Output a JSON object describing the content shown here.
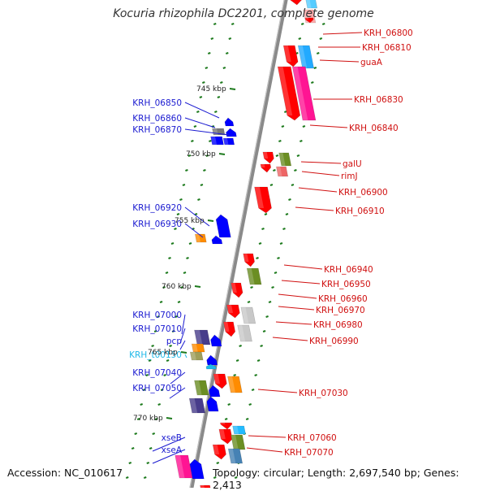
{
  "title": "Kocuria rhizophila DC2201, complete genome",
  "footer": {
    "accession": "Accession: NC_010617",
    "summary": "Topology: circular; Length: 2,697,540 bp; Genes: 2,413"
  },
  "colors": {
    "backbone": "#8a8a8a",
    "tick": "#1d7a1d",
    "left_label": "#1a1ad0",
    "right_label": "#d01010",
    "trna_label": "#20b8e8"
  },
  "scale_labels": [
    "745 kbp",
    "750 kbp",
    "755 kbp",
    "760 kbp",
    "765 kbp",
    "770 kbp"
  ],
  "left_genes": [
    "KRH_06850",
    "KRH_06860",
    "KRH_06870",
    "KRH_06920",
    "KRH_06930",
    "KRH_07000",
    "KRH_07010",
    "pcp",
    "KRH_t00150",
    "KRH_07040",
    "KRH_07050",
    "xseB",
    "xseA"
  ],
  "right_genes": [
    "KRH_06800",
    "KRH_06810",
    "guaA",
    "KRH_06830",
    "KRH_06840",
    "galU",
    "rimJ",
    "KRH_06900",
    "KRH_06910",
    "KRH_06940",
    "KRH_06950",
    "KRH_06960",
    "KRH_06970",
    "KRH_06980",
    "KRH_06990",
    "KRH_07030",
    "KRH_07060",
    "KRH_07070"
  ]
}
